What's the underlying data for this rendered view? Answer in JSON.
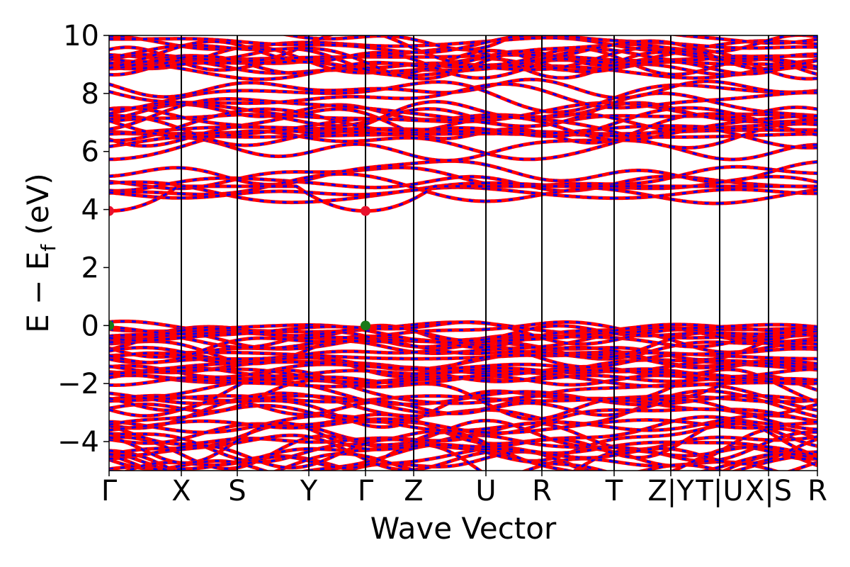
{
  "chart_data": {
    "type": "line",
    "xlabel": "Wave Vector",
    "ylabel_main": "E − E",
    "ylabel_sub": "f",
    "ylabel_unit": " (eV)",
    "ylim": [
      -5,
      10
    ],
    "yticks": [
      "−4",
      "−2",
      "0",
      "2",
      "4",
      "6",
      "8",
      "10"
    ],
    "ytick_values": [
      -4,
      -2,
      0,
      2,
      4,
      6,
      8,
      10
    ],
    "kpath": [
      {
        "label": "Γ",
        "k": 0.0
      },
      {
        "label": "X",
        "k": 1.02
      },
      {
        "label": "S",
        "k": 1.81
      },
      {
        "label": "Y",
        "k": 2.82
      },
      {
        "label": "Γ",
        "k": 3.62
      },
      {
        "label": "Z",
        "k": 4.3
      },
      {
        "label": "U",
        "k": 5.32
      },
      {
        "label": "R",
        "k": 6.11
      },
      {
        "label": "T",
        "k": 7.13
      },
      {
        "label": "Z|Y",
        "k": 7.93
      },
      {
        "label": "T|U",
        "k": 8.62
      },
      {
        "label": "X|S",
        "k": 9.31
      },
      {
        "label": "R",
        "k": 10.0
      }
    ],
    "series": [
      {
        "name": "",
        "color": "#ff0000"
      },
      {
        "name": "",
        "color": "#0000ff"
      }
    ],
    "markers": [
      {
        "k": 0.0,
        "energy": 3.95,
        "color": "#e8112d"
      },
      {
        "k": 3.62,
        "energy": 3.95,
        "color": "#e8112d"
      },
      {
        "k": 0.0,
        "energy": 0.0,
        "color": "#1a7a1a"
      },
      {
        "k": 3.62,
        "energy": 0.0,
        "color": "#1a7a1a"
      }
    ]
  }
}
